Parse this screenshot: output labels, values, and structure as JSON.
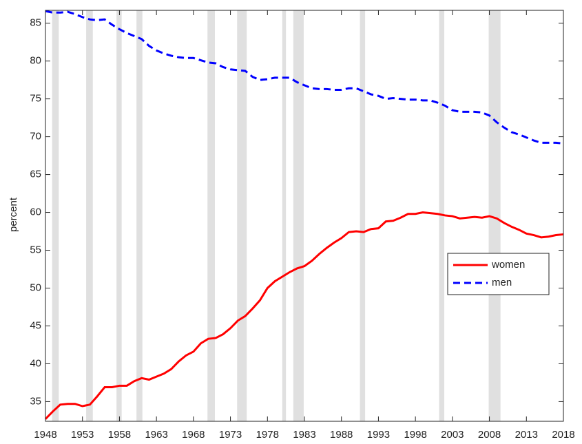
{
  "chart_data": {
    "type": "line",
    "y_label": "percent",
    "x": [
      1948,
      1949,
      1950,
      1951,
      1952,
      1953,
      1954,
      1955,
      1956,
      1957,
      1958,
      1959,
      1960,
      1961,
      1962,
      1963,
      1964,
      1965,
      1966,
      1967,
      1968,
      1969,
      1970,
      1971,
      1972,
      1973,
      1974,
      1975,
      1976,
      1977,
      1978,
      1979,
      1980,
      1981,
      1982,
      1983,
      1984,
      1985,
      1986,
      1987,
      1988,
      1989,
      1990,
      1991,
      1992,
      1993,
      1994,
      1995,
      1996,
      1997,
      1998,
      1999,
      2000,
      2001,
      2002,
      2003,
      2004,
      2005,
      2006,
      2007,
      2008,
      2009,
      2010,
      2011,
      2012,
      2013,
      2014,
      2015,
      2016,
      2017,
      2018
    ],
    "series": [
      {
        "name": "women",
        "color": "#ff0000",
        "dash": "solid",
        "values": [
          32.7,
          33.7,
          34.6,
          34.7,
          34.7,
          34.4,
          34.6,
          35.7,
          36.9,
          36.9,
          37.1,
          37.1,
          37.7,
          38.1,
          37.9,
          38.3,
          38.7,
          39.3,
          40.3,
          41.1,
          41.6,
          42.7,
          43.3,
          43.4,
          43.9,
          44.7,
          45.7,
          46.3,
          47.3,
          48.4,
          50.0,
          50.9,
          51.5,
          52.1,
          52.6,
          52.9,
          53.6,
          54.5,
          55.3,
          56.0,
          56.6,
          57.4,
          57.5,
          57.4,
          57.8,
          57.9,
          58.8,
          58.9,
          59.3,
          59.8,
          59.8,
          60.0,
          59.9,
          59.8,
          59.6,
          59.5,
          59.2,
          59.3,
          59.4,
          59.3,
          59.5,
          59.2,
          58.6,
          58.1,
          57.7,
          57.2,
          57.0,
          56.7,
          56.8,
          57.0,
          57.1
        ]
      },
      {
        "name": "men",
        "color": "#0000ff",
        "dash": "dashed",
        "values": [
          86.6,
          86.4,
          86.4,
          86.5,
          86.2,
          85.8,
          85.5,
          85.4,
          85.5,
          84.8,
          84.2,
          83.7,
          83.3,
          82.9,
          82.0,
          81.4,
          81.0,
          80.7,
          80.5,
          80.4,
          80.4,
          80.1,
          79.8,
          79.7,
          79.2,
          78.9,
          78.8,
          78.7,
          77.9,
          77.5,
          77.6,
          77.8,
          77.8,
          77.8,
          77.2,
          76.8,
          76.4,
          76.3,
          76.3,
          76.2,
          76.2,
          76.4,
          76.4,
          76.0,
          75.6,
          75.4,
          75.0,
          75.1,
          75.0,
          74.9,
          74.9,
          74.8,
          74.8,
          74.5,
          74.1,
          73.5,
          73.3,
          73.3,
          73.3,
          73.2,
          72.8,
          71.9,
          71.2,
          70.6,
          70.3,
          69.9,
          69.5,
          69.2,
          69.2,
          69.2,
          69.1
        ]
      }
    ],
    "recessions": [
      [
        1948.9,
        1949.8
      ],
      [
        1953.5,
        1954.4
      ],
      [
        1957.6,
        1958.3
      ],
      [
        1960.3,
        1961.1
      ],
      [
        1969.9,
        1970.9
      ],
      [
        1973.9,
        1975.2
      ],
      [
        1980.0,
        1980.5
      ],
      [
        1981.5,
        1982.9
      ],
      [
        1990.5,
        1991.2
      ],
      [
        2001.2,
        2001.9
      ],
      [
        2007.9,
        2009.5
      ]
    ],
    "recession_color": "#e0e0e0",
    "xlim": [
      1948,
      2018
    ],
    "xticks": [
      1948,
      1953,
      1958,
      1963,
      1968,
      1973,
      1978,
      1983,
      1988,
      1993,
      1998,
      2003,
      2008,
      2013,
      2018
    ],
    "ylim": [
      32.4,
      86.7
    ],
    "yticks": [
      35,
      40,
      45,
      50,
      55,
      60,
      65,
      70,
      75,
      80,
      85
    ],
    "legend": "right"
  }
}
